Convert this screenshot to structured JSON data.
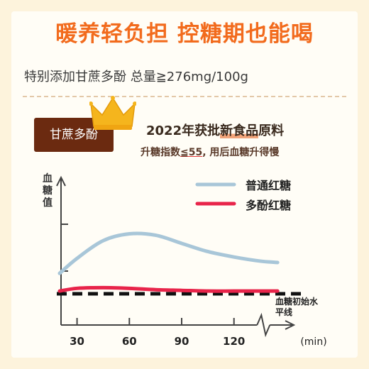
{
  "headline": "暖养轻负担 控糖期也能喝",
  "subline": "特别添加甘蔗多酚 总量≧276mg/100g",
  "badge": "甘蔗多酚",
  "claim": {
    "line1_pre": "2022年获批",
    "line1_hl": "新食品",
    "line1_post": "原料",
    "line2_pre": "升糖指数",
    "line2_ul": "≦55",
    "line2_post": ", 用后血糖升得慢"
  },
  "colors": {
    "accent": "#f26b1d",
    "badge": "#6b2a10",
    "crown": "#f5b51d"
  },
  "chart_data": {
    "type": "line",
    "ylabel": "血糖值",
    "xlabel": "(min)",
    "x_ticks": [
      30,
      60,
      90,
      120
    ],
    "xlim": [
      20,
      160
    ],
    "axis_break_after": 130,
    "series": [
      {
        "name": "普通红糖",
        "color": "#a8c6d8",
        "x": [
          20,
          30,
          45,
          60,
          75,
          90,
          105,
          120,
          135,
          145
        ],
        "y": [
          0.3,
          0.52,
          0.78,
          0.88,
          0.86,
          0.74,
          0.62,
          0.54,
          0.48,
          0.46
        ]
      },
      {
        "name": "多酚红糖",
        "color": "#e8244a",
        "x": [
          20,
          30,
          45,
          60,
          75,
          90,
          105,
          120,
          135,
          145
        ],
        "y": [
          0.04,
          0.08,
          0.09,
          0.08,
          0.06,
          0.05,
          0.04,
          0.04,
          0.04,
          0.04
        ]
      }
    ],
    "baseline": {
      "label": "血糖初始水平线",
      "y": 0
    }
  }
}
